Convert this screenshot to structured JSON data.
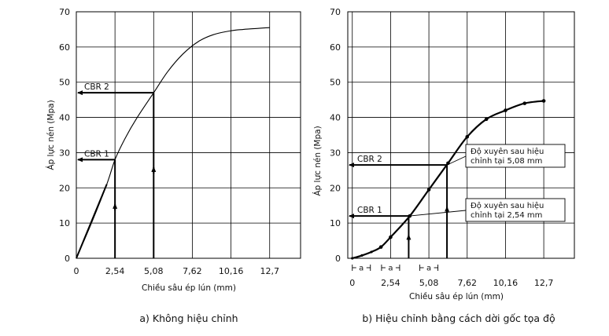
{
  "chart_data": [
    {
      "type": "line",
      "title": "",
      "caption": "a) Không hiệu chỉnh",
      "xlabel": "Chiều sâu ép lún (mm)",
      "ylabel": "Áp lực nén (Mpa)",
      "xlim": [
        0,
        14.73
      ],
      "ylim": [
        0,
        70
      ],
      "x_ticks": [
        0,
        2.54,
        5.08,
        7.62,
        10.16,
        12.7
      ],
      "x_tick_labels": [
        "0",
        "2,54",
        "5,08",
        "7,62",
        "10,16",
        "12,7"
      ],
      "y_ticks": [
        0,
        10,
        20,
        30,
        40,
        50,
        60,
        70
      ],
      "y_tick_labels": [
        "0",
        "10",
        "20",
        "30",
        "40",
        "50",
        "60",
        "70"
      ],
      "series": [
        {
          "name": "curve",
          "x": [
            0,
            1.0,
            2.0,
            2.54,
            3.2,
            4.0,
            5.08,
            6.0,
            7.0,
            8.0,
            9.0,
            10.16,
            11.0,
            12.0,
            12.7
          ],
          "y": [
            0,
            10,
            21,
            28,
            34,
            40,
            47,
            53,
            58,
            61.5,
            63.5,
            64.6,
            65,
            65.3,
            65.5
          ]
        }
      ],
      "cbr_markers": [
        {
          "label": "CBR 1",
          "x": 2.54,
          "y": 28
        },
        {
          "label": "CBR 2",
          "x": 5.08,
          "y": 47
        }
      ]
    },
    {
      "type": "line",
      "title": "",
      "caption": "b) Hiệu chỉnh bằng cách dời gốc tọa độ",
      "xlabel": "Chiều sâu ép lún (mm)",
      "ylabel": "Áp lực nén (Mpa)",
      "xlim": [
        -0.3,
        14.73
      ],
      "ylim": [
        0,
        70
      ],
      "x_ticks": [
        0,
        2.54,
        5.08,
        7.62,
        10.16,
        12.7
      ],
      "x_tick_labels": [
        "0",
        "2,54",
        "5,08",
        "7,62",
        "10,16",
        "12,7"
      ],
      "y_ticks": [
        0,
        10,
        20,
        30,
        40,
        50,
        60,
        70
      ],
      "y_tick_labels": [
        "0",
        "10",
        "20",
        "30",
        "40",
        "50",
        "60",
        "70"
      ],
      "offset_marker": "a",
      "offset_value": 1.2,
      "series": [
        {
          "name": "curve",
          "x": [
            0,
            0.64,
            1.27,
            1.9,
            2.54,
            3.81,
            5.08,
            6.35,
            7.62,
            8.89,
            10.16,
            11.43,
            12.7
          ],
          "y": [
            0,
            0.8,
            1.8,
            3.2,
            6,
            12,
            19.5,
            27,
            34.5,
            39.5,
            42,
            44,
            44.7
          ]
        }
      ],
      "cbr_markers": [
        {
          "label": "CBR 1",
          "x": 3.74,
          "y": 12,
          "note": [
            "Độ xuyên sau hiệu",
            "chỉnh tại 2,54 mm"
          ]
        },
        {
          "label": "CBR 2",
          "x": 6.28,
          "y": 26.5,
          "note": [
            "Độ xuyên sau hiệu",
            "chỉnh tại 5,08 mm"
          ]
        }
      ]
    }
  ]
}
